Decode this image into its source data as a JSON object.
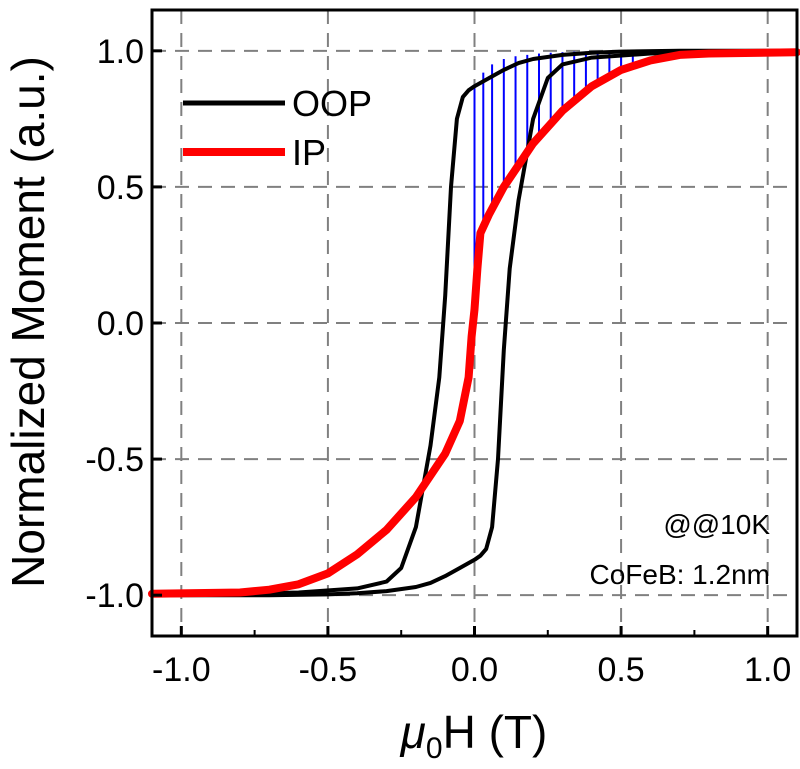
{
  "chart_data": {
    "type": "line",
    "title": "",
    "xlabel": {
      "symbol": "μ",
      "subscript": "0",
      "rest": "H (T)"
    },
    "ylabel": "Normalized Moment (a.u.)",
    "xlim": [
      -1.1,
      1.1
    ],
    "ylim": [
      -1.15,
      1.15
    ],
    "x_ticks": [
      -1.0,
      -0.5,
      0.0,
      0.5,
      1.0
    ],
    "x_tick_labels": [
      "-1.0",
      "-0.5",
      "0.0",
      "0.5",
      "1.0"
    ],
    "y_ticks": [
      -1.0,
      -0.5,
      0.0,
      0.5,
      1.0
    ],
    "y_tick_labels": [
      "-1.0",
      "-0.5",
      "0.0",
      "0.5",
      "1.0"
    ],
    "grid": true,
    "legend_position": "top-left",
    "annotations": [
      "@@10K",
      "CoFeB: 1.2nm"
    ],
    "colors": {
      "OOP": "#000000",
      "IP": "#ff0000",
      "hatch": "#0000ff",
      "grid": "#808080"
    },
    "series": [
      {
        "name": "OOP",
        "branches": [
          {
            "x": [
              -1.1,
              -0.8,
              -0.6,
              -0.4,
              -0.3,
              -0.25,
              -0.2,
              -0.15,
              -0.12,
              -0.1,
              -0.08,
              -0.06,
              -0.04,
              -0.02,
              0.0,
              0.05,
              0.1,
              0.15,
              0.2,
              0.3,
              0.4,
              0.5,
              0.7,
              1.1
            ],
            "y": [
              -1.0,
              -0.995,
              -0.99,
              -0.975,
              -0.95,
              -0.9,
              -0.75,
              -0.45,
              -0.2,
              0.1,
              0.5,
              0.75,
              0.83,
              0.855,
              0.87,
              0.9,
              0.93,
              0.955,
              0.97,
              0.985,
              0.993,
              0.997,
              1.0,
              1.0
            ]
          },
          {
            "x": [
              1.1,
              0.8,
              0.6,
              0.4,
              0.3,
              0.25,
              0.2,
              0.15,
              0.12,
              0.1,
              0.08,
              0.06,
              0.04,
              0.02,
              0.0,
              -0.05,
              -0.1,
              -0.15,
              -0.2,
              -0.3,
              -0.4,
              -0.5,
              -0.7,
              -1.1
            ],
            "y": [
              1.0,
              0.995,
              0.99,
              0.975,
              0.95,
              0.9,
              0.75,
              0.45,
              0.2,
              -0.1,
              -0.5,
              -0.75,
              -0.83,
              -0.855,
              -0.87,
              -0.9,
              -0.93,
              -0.955,
              -0.97,
              -0.985,
              -0.993,
              -0.997,
              -1.0,
              -1.0
            ]
          }
        ]
      },
      {
        "name": "IP",
        "branches": [
          {
            "x": [
              -1.1,
              -0.8,
              -0.7,
              -0.6,
              -0.5,
              -0.4,
              -0.3,
              -0.2,
              -0.1,
              -0.05,
              -0.02,
              -0.01,
              0.0,
              0.01,
              0.02,
              0.05,
              0.1,
              0.15,
              0.2,
              0.3,
              0.4,
              0.5,
              0.6,
              0.7,
              0.8,
              1.1
            ],
            "y": [
              -0.995,
              -0.99,
              -0.98,
              -0.96,
              -0.92,
              -0.85,
              -0.76,
              -0.64,
              -0.48,
              -0.36,
              -0.2,
              -0.05,
              0.05,
              0.2,
              0.33,
              0.4,
              0.5,
              0.58,
              0.66,
              0.78,
              0.87,
              0.93,
              0.965,
              0.985,
              0.99,
              0.995
            ]
          }
        ]
      }
    ],
    "hatch_lines": {
      "x": [
        0.0,
        0.03,
        0.06,
        0.1,
        0.14,
        0.18,
        0.22,
        0.26,
        0.3,
        0.34,
        0.38,
        0.42,
        0.46,
        0.5,
        0.54
      ],
      "y_top": [
        0.87,
        0.92,
        0.95,
        0.97,
        0.98,
        0.985,
        0.99,
        0.993,
        0.995,
        0.997,
        0.998,
        0.999,
        1.0,
        1.0,
        1.0
      ],
      "y_bottom": [
        0.15,
        0.35,
        0.41,
        0.48,
        0.55,
        0.62,
        0.69,
        0.74,
        0.78,
        0.83,
        0.86,
        0.89,
        0.91,
        0.93,
        0.945
      ]
    }
  }
}
